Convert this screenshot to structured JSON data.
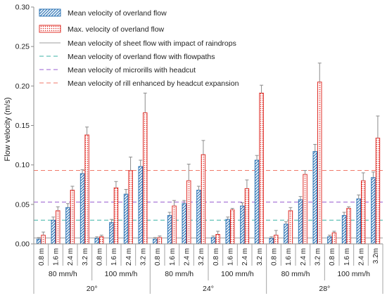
{
  "chart_data": {
    "type": "bar",
    "title": "",
    "xlabel": "",
    "ylabel": "Flow velocity (m/s)",
    "ylim": [
      0,
      0.3
    ],
    "yticks": [
      "0.00",
      "0.05",
      "0.10",
      "0.15",
      "0.20",
      "0.25",
      "0.30"
    ],
    "grid": false,
    "legend_position": "top-left",
    "slopes": [
      "20°",
      "24°",
      "28°"
    ],
    "intensities": [
      "80 mm/h",
      "100 mm/h"
    ],
    "categories": [
      "0.8 m",
      "1.6 m",
      "2.4 m",
      "3.2 m",
      "0.8 m",
      "1.6 m",
      "2.4 m",
      "3.2 m",
      "0.8 m",
      "1.6 m",
      "2.4 m",
      "3.2 m",
      "0.8 m",
      "1.6 m",
      "2.4 m",
      "3.2 m",
      "0.8 m",
      "1.6 m",
      "2.4 m",
      "3.2 m",
      "0.8 m",
      "1.6 m",
      "2.4 m",
      "3.2m"
    ],
    "series": [
      {
        "name": "Mean velocity of overland flow",
        "color": "#2e75b6",
        "pattern": "diagonal-hatch",
        "values": [
          0.006,
          0.03,
          0.046,
          0.089,
          0.007,
          0.027,
          0.063,
          0.098,
          0.006,
          0.036,
          0.051,
          0.068,
          0.008,
          0.031,
          0.048,
          0.106,
          0.007,
          0.025,
          0.056,
          0.117,
          0.009,
          0.036,
          0.057,
          0.084
        ],
        "errors": [
          0.002,
          0.004,
          0.005,
          0.005,
          0.002,
          0.004,
          0.006,
          0.008,
          0.002,
          0.004,
          0.004,
          0.005,
          0.002,
          0.003,
          0.004,
          0.006,
          0.002,
          0.003,
          0.004,
          0.009,
          0.002,
          0.004,
          0.005,
          0.007
        ]
      },
      {
        "name": "Max. velocity of overland flow",
        "color": "#e0302a",
        "pattern": "dots",
        "values": [
          0.011,
          0.042,
          0.068,
          0.138,
          0.009,
          0.071,
          0.093,
          0.166,
          0.008,
          0.048,
          0.08,
          0.113,
          0.012,
          0.043,
          0.07,
          0.191,
          0.011,
          0.042,
          0.088,
          0.205,
          0.014,
          0.045,
          0.08,
          0.134
        ],
        "errors": [
          0.004,
          0.005,
          0.005,
          0.01,
          0.002,
          0.008,
          0.017,
          0.025,
          0.002,
          0.007,
          0.021,
          0.018,
          0.004,
          0.002,
          0.011,
          0.01,
          0.006,
          0.004,
          0.005,
          0.024,
          0.002,
          0.002,
          0.01,
          0.028
        ]
      }
    ],
    "reference_lines": [
      {
        "name": "Mean velocity of sheet flow with impact of raindrops",
        "value": 0.0075,
        "color": "#9e9e9e",
        "dash": "solid"
      },
      {
        "name": "Mean velocity of overland flow with flowpaths",
        "value": 0.03,
        "color": "#3bb3a6",
        "dash": "dashed"
      },
      {
        "name": "Mean velocity of microrills with headcut",
        "value": 0.053,
        "color": "#9a5fd0",
        "dash": "dashed"
      },
      {
        "name": "Mean velocity of rill enhanced by headcut expansion",
        "value": 0.093,
        "color": "#f07a6a",
        "dash": "dashed"
      }
    ]
  }
}
